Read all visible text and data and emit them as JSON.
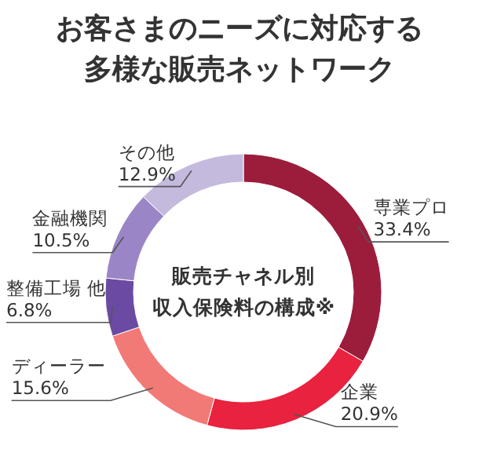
{
  "chart_data": {
    "type": "donut",
    "title": "お客さまのニーズに対応する多様な販売ネットワーク",
    "annotations": [
      "販売チャネル別",
      "収入保険料の構成※"
    ],
    "categories": [
      "専業プロ",
      "企業",
      "ディーラー",
      "整備工場 他",
      "金融機関",
      "その他"
    ],
    "values": [
      33.4,
      20.9,
      15.6,
      6.8,
      10.5,
      12.9
    ],
    "value_labels": [
      "33.4%",
      "20.9%",
      "15.6%",
      "6.8%",
      "10.5%",
      "12.9%"
    ],
    "colors": [
      "#9c1c3c",
      "#e8223f",
      "#f27a76",
      "#6b4aa3",
      "#9a86c6",
      "#c4badd"
    ]
  }
}
